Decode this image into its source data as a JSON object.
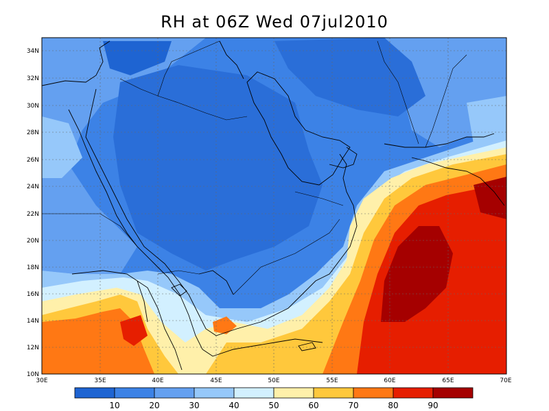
{
  "title": "RH at 06Z Wed 07jul2010",
  "lat_labels": [
    "10N",
    "12N",
    "14N",
    "16N",
    "18N",
    "20N",
    "22N",
    "24N",
    "26N",
    "28N",
    "30N",
    "32N",
    "34N"
  ],
  "lon_labels": [
    "30E",
    "35E",
    "40E",
    "45E",
    "50E",
    "55E",
    "60E",
    "65E",
    "70E"
  ],
  "colorbar": {
    "labels": [
      "10",
      "20",
      "30",
      "40",
      "50",
      "60",
      "70",
      "80",
      "90"
    ],
    "colors": [
      "#1e64d2",
      "#3c82e6",
      "#64a0f0",
      "#96c8fa",
      "#d2f0ff",
      "#fff0aa",
      "#ffc83c",
      "#ff7814",
      "#e61e00",
      "#a50000"
    ]
  }
}
